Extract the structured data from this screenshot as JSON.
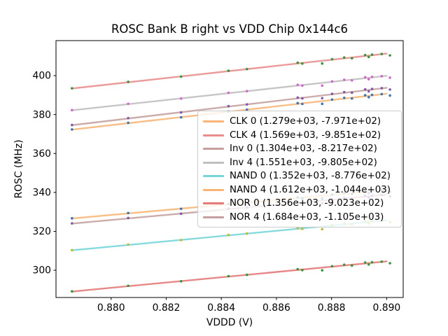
{
  "figure": {
    "background": "#ffffff"
  },
  "chart_data": {
    "type": "scatter",
    "title": "ROSC Bank B right vs VDD Chip 0x144c6",
    "xlabel": "VDDD (V)",
    "ylabel": "ROSC (MHz)",
    "xlim": [
      0.878,
      0.8906
    ],
    "ylim": [
      286,
      418
    ],
    "grid": false,
    "legend_position": "center right",
    "x_ticks": {
      "values": [
        0.88,
        0.882,
        0.884,
        0.886,
        0.888,
        0.89
      ],
      "labels": [
        "0.880",
        "0.882",
        "0.884",
        "0.886",
        "0.888",
        "0.890"
      ]
    },
    "y_ticks": {
      "values": [
        300,
        320,
        340,
        360,
        380,
        400
      ],
      "labels": [
        "300",
        "320",
        "340",
        "360",
        "380",
        "400"
      ]
    },
    "x_points": [
      0.87858,
      0.88062,
      0.88254,
      0.88426,
      0.88493,
      0.88677,
      0.88694,
      0.88766,
      0.88802,
      0.88846,
      0.88874,
      0.88922,
      0.88935,
      0.88947,
      0.88982,
      0.89012
    ],
    "point_jitter_mhz": [
      0.1,
      0.2,
      -0.1,
      0.2,
      0.0,
      0.4,
      -0.3,
      -1.4,
      0.2,
      0.4,
      -0.4,
      0.5,
      -0.7,
      0.3,
      0.1,
      -1.1
    ],
    "fit_x_range": [
      0.87858,
      0.89
    ],
    "series": [
      {
        "name": "CLK 0",
        "legend_label": "CLK 0 (1.279e+03, -7.971e+02)",
        "slope": 1279,
        "intercept": -797.1,
        "line_color": "#f8a75e",
        "point_color": "#3878b4"
      },
      {
        "name": "CLK 4",
        "legend_label": "CLK 4 (1.569e+03, -9.851e+02)",
        "slope": 1569,
        "intercept": -985.1,
        "line_color": "#e57879",
        "point_color": "#3a963a"
      },
      {
        "name": "Inv 0",
        "legend_label": "Inv 0 (1.304e+03, -8.217e+02)",
        "slope": 1304,
        "intercept": -821.7,
        "line_color": "#bc8f8f",
        "point_color": "#8257a5"
      },
      {
        "name": "Inv 4",
        "legend_label": "Inv 4 (1.551e+03, -9.805e+02)",
        "slope": 1551,
        "intercept": -980.5,
        "line_color": "#b4b4b4",
        "point_color": "#d467cc"
      },
      {
        "name": "NAND 0",
        "legend_label": "NAND 0 (1.352e+03, -8.776e+02)",
        "slope": 1352,
        "intercept": -877.6,
        "line_color": "#5dced2",
        "point_color": "#bdba3b"
      },
      {
        "name": "NAND 4",
        "legend_label": "NAND 4 (1.612e+03, -1.044e+03)",
        "slope": 1612,
        "intercept": -1044,
        "line_color": "#f8a75e",
        "point_color": "#3878b4"
      },
      {
        "name": "NOR 0",
        "legend_label": "NOR 0 (1.356e+03, -9.023e+02)",
        "slope": 1356,
        "intercept": -902.3,
        "line_color": "#e06060",
        "point_color": "#3a963a"
      },
      {
        "name": "NOR 4",
        "legend_label": "NOR 4 (1.684e+03, -1.105e+03)",
        "slope": 1684,
        "intercept": -1105,
        "line_color": "#bc8f8f",
        "point_color": "#8257a5"
      }
    ]
  }
}
